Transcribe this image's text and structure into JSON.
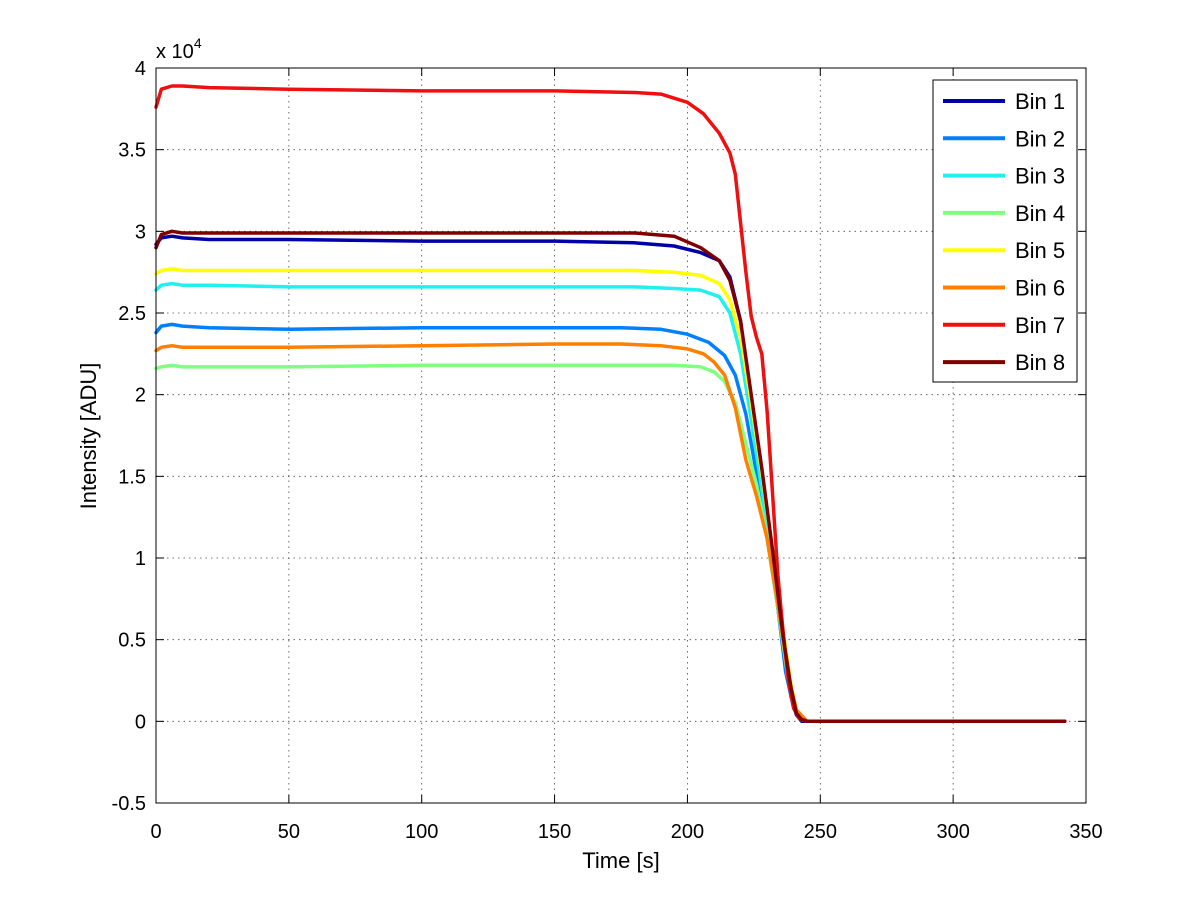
{
  "chart_data": {
    "type": "line",
    "title": "",
    "xlabel": "Time [s]",
    "ylabel": "Intensity [ADU]",
    "y_exponent_label": "x 10",
    "y_exponent_power": "4",
    "xlim": [
      0,
      350
    ],
    "ylim": [
      -0.5,
      4
    ],
    "xticks": [
      0,
      50,
      100,
      150,
      200,
      250,
      300,
      350
    ],
    "yticks": [
      -0.5,
      0,
      0.5,
      1,
      1.5,
      2,
      2.5,
      3,
      3.5,
      4
    ],
    "xtick_labels": [
      "0",
      "50",
      "100",
      "150",
      "200",
      "250",
      "300",
      "350"
    ],
    "ytick_labels": [
      "-0.5",
      "0",
      "0.5",
      "1",
      "1.5",
      "2",
      "2.5",
      "3",
      "3.5",
      "4"
    ],
    "grid": true,
    "legend_position": "top-right",
    "series": [
      {
        "name": "Bin 1",
        "color": "#0000a8",
        "x": [
          0,
          2,
          6,
          10,
          20,
          50,
          100,
          150,
          180,
          195,
          205,
          212,
          216,
          220,
          224,
          228,
          232,
          236,
          239,
          241,
          243,
          245,
          250,
          300,
          342
        ],
        "y": [
          2.92,
          2.96,
          2.97,
          2.96,
          2.95,
          2.95,
          2.94,
          2.94,
          2.93,
          2.91,
          2.87,
          2.82,
          2.72,
          2.45,
          1.9,
          1.45,
          0.95,
          0.45,
          0.15,
          0.04,
          0.0,
          0.0,
          0.0,
          0.0,
          0.0
        ]
      },
      {
        "name": "Bin 2",
        "color": "#0080ff",
        "x": [
          0,
          2,
          6,
          10,
          20,
          50,
          100,
          150,
          175,
          190,
          200,
          208,
          214,
          218,
          222,
          226,
          230,
          234,
          237,
          240,
          242,
          245,
          250,
          300,
          342
        ],
        "y": [
          2.38,
          2.42,
          2.43,
          2.42,
          2.41,
          2.4,
          2.41,
          2.41,
          2.41,
          2.4,
          2.37,
          2.32,
          2.24,
          2.12,
          1.88,
          1.52,
          1.12,
          0.7,
          0.3,
          0.08,
          0.02,
          0.0,
          0.0,
          0.0,
          0.0
        ]
      },
      {
        "name": "Bin 3",
        "color": "#20f0f0",
        "x": [
          0,
          2,
          6,
          10,
          20,
          50,
          100,
          150,
          180,
          195,
          205,
          212,
          216,
          220,
          224,
          228,
          232,
          236,
          239,
          241,
          243,
          245,
          250,
          300,
          342
        ],
        "y": [
          2.64,
          2.67,
          2.68,
          2.67,
          2.67,
          2.66,
          2.66,
          2.66,
          2.66,
          2.65,
          2.64,
          2.6,
          2.5,
          2.25,
          1.85,
          1.42,
          0.98,
          0.5,
          0.2,
          0.05,
          0.01,
          0.0,
          0.0,
          0.0,
          0.0
        ]
      },
      {
        "name": "Bin 4",
        "color": "#80ff80",
        "x": [
          0,
          2,
          6,
          10,
          20,
          50,
          100,
          150,
          180,
          195,
          205,
          210,
          214,
          218,
          222,
          226,
          230,
          234,
          238,
          241,
          243,
          245,
          250,
          300,
          342
        ],
        "y": [
          2.16,
          2.17,
          2.18,
          2.17,
          2.17,
          2.17,
          2.18,
          2.18,
          2.18,
          2.18,
          2.17,
          2.14,
          2.08,
          1.95,
          1.7,
          1.45,
          1.12,
          0.7,
          0.25,
          0.07,
          0.02,
          0.0,
          0.0,
          0.0,
          0.0
        ]
      },
      {
        "name": "Bin 5",
        "color": "#ffff00",
        "x": [
          0,
          2,
          6,
          10,
          20,
          50,
          100,
          150,
          180,
          195,
          205,
          212,
          216,
          220,
          224,
          228,
          232,
          236,
          239,
          241,
          243,
          245,
          250,
          300,
          342
        ],
        "y": [
          2.74,
          2.76,
          2.77,
          2.76,
          2.76,
          2.76,
          2.76,
          2.76,
          2.76,
          2.75,
          2.73,
          2.68,
          2.58,
          2.35,
          1.95,
          1.52,
          1.05,
          0.55,
          0.22,
          0.06,
          0.01,
          0.0,
          0.0,
          0.0,
          0.0
        ]
      },
      {
        "name": "Bin 6",
        "color": "#ff8000",
        "x": [
          0,
          2,
          6,
          10,
          20,
          50,
          100,
          150,
          175,
          190,
          200,
          206,
          210,
          214,
          218,
          222,
          226,
          230,
          234,
          238,
          241,
          245,
          250,
          300,
          342
        ],
        "y": [
          2.27,
          2.29,
          2.3,
          2.29,
          2.29,
          2.29,
          2.3,
          2.31,
          2.31,
          2.3,
          2.28,
          2.25,
          2.2,
          2.12,
          1.92,
          1.6,
          1.38,
          1.12,
          0.72,
          0.28,
          0.07,
          0.0,
          0.0,
          0.0,
          0.0
        ]
      },
      {
        "name": "Bin 7",
        "color": "#ee1010",
        "x": [
          0,
          2,
          6,
          10,
          20,
          50,
          100,
          150,
          180,
          190,
          200,
          206,
          212,
          216,
          218,
          220,
          222,
          224,
          226,
          228,
          230,
          232,
          234,
          236,
          238,
          240,
          242,
          245,
          250,
          300,
          342
        ],
        "y": [
          3.76,
          3.87,
          3.89,
          3.89,
          3.88,
          3.87,
          3.86,
          3.86,
          3.85,
          3.84,
          3.79,
          3.72,
          3.6,
          3.48,
          3.35,
          3.05,
          2.75,
          2.48,
          2.35,
          2.25,
          1.9,
          1.4,
          0.9,
          0.55,
          0.25,
          0.08,
          0.02,
          0.0,
          0.0,
          0.0,
          0.0
        ]
      },
      {
        "name": "Bin 8",
        "color": "#800000",
        "x": [
          0,
          2,
          6,
          10,
          20,
          50,
          100,
          150,
          180,
          195,
          205,
          212,
          216,
          220,
          224,
          228,
          232,
          236,
          239,
          241,
          243,
          245,
          250,
          300,
          342
        ],
        "y": [
          2.9,
          2.98,
          3.0,
          2.99,
          2.99,
          2.99,
          2.99,
          2.99,
          2.99,
          2.97,
          2.9,
          2.82,
          2.7,
          2.45,
          2.0,
          1.55,
          1.05,
          0.52,
          0.2,
          0.05,
          0.01,
          0.0,
          0.0,
          0.0,
          0.0
        ]
      }
    ]
  }
}
